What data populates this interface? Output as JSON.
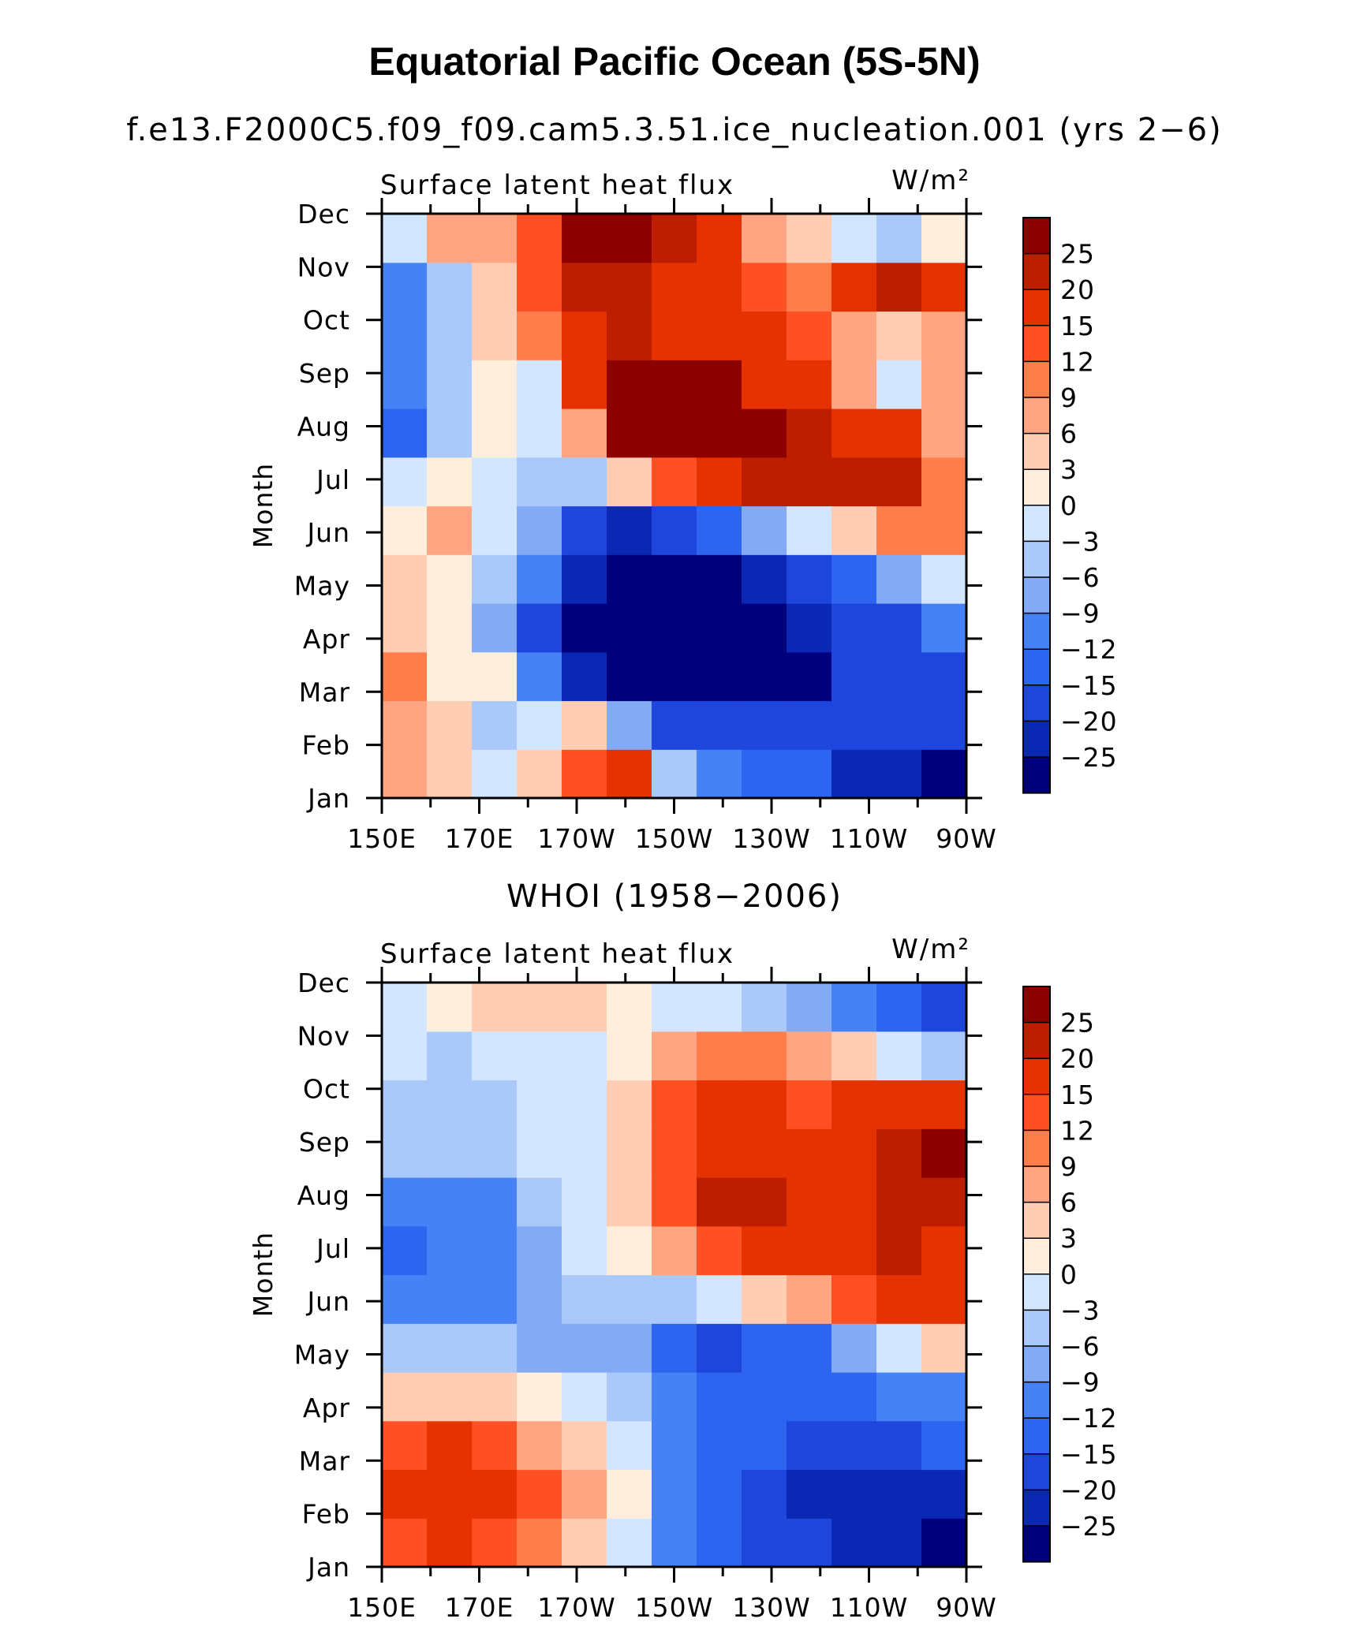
{
  "title": "Equatorial Pacific Ocean (5S-5N)",
  "subtitle": "f.e13.F2000C5.f09_f09.cam5.3.51.ice_nucleation.001 (yrs 2−6)",
  "chart_data": [
    {
      "type": "heatmap",
      "title": "",
      "panel_label": "Surface latent heat flux",
      "units_label": "W/m²",
      "xlabel": "",
      "ylabel": "Month",
      "x_ticks": [
        "150E",
        "170E",
        "170W",
        "150W",
        "130W",
        "110W",
        "90W"
      ],
      "y_ticks": [
        "Jan",
        "Feb",
        "Mar",
        "Apr",
        "May",
        "Jun",
        "Jul",
        "Aug",
        "Sep",
        "Oct",
        "Nov",
        "Dec"
      ],
      "longitudes": [
        "150E",
        "160E",
        "170E",
        "180",
        "170W",
        "160W",
        "150W",
        "140W",
        "130W",
        "120W",
        "110W",
        "100W",
        "90W"
      ],
      "z": [
        [
          6,
          4,
          -2,
          5,
          12,
          18,
          -4,
          -10,
          -15,
          -15,
          -22,
          -22,
          -28
        ],
        [
          8,
          5,
          -4,
          -2,
          3,
          -8,
          -18,
          -20,
          -20,
          -20,
          -20,
          -20,
          -20
        ],
        [
          10,
          2,
          0,
          -12,
          -22,
          -28,
          -28,
          -28,
          -28,
          -28,
          -20,
          -20,
          -20
        ],
        [
          5,
          0,
          -8,
          -18,
          -28,
          -28,
          -28,
          -28,
          -28,
          -25,
          -20,
          -18,
          -10
        ],
        [
          3,
          2,
          -6,
          -12,
          -24,
          -28,
          -28,
          -28,
          -25,
          -20,
          -15,
          -8,
          -3
        ],
        [
          2,
          6,
          -2,
          -8,
          -18,
          -22,
          -20,
          -15,
          -8,
          -2,
          4,
          9,
          10
        ],
        [
          -2,
          2,
          -1,
          -4,
          -5,
          5,
          12,
          18,
          20,
          22,
          22,
          20,
          10
        ],
        [
          -15,
          -6,
          0,
          -2,
          6,
          25,
          28,
          28,
          25,
          22,
          18,
          15,
          8
        ],
        [
          -12,
          -6,
          2,
          -2,
          18,
          28,
          28,
          25,
          18,
          15,
          6,
          -2,
          6
        ],
        [
          -10,
          -4,
          4,
          9,
          15,
          20,
          18,
          16,
          15,
          12,
          6,
          3,
          8
        ],
        [
          -12,
          -6,
          4,
          12,
          20,
          22,
          18,
          15,
          12,
          9,
          15,
          20,
          18
        ],
        [
          -3,
          6,
          8,
          12,
          25,
          28,
          20,
          15,
          6,
          3,
          -3,
          -6,
          0
        ]
      ],
      "color_levels": [
        "<-25",
        "-25",
        "-20",
        "-15",
        "-12",
        "-9",
        "-6",
        "-3",
        "0",
        "3",
        "6",
        "9",
        "12",
        "15",
        "20",
        "25",
        ">25"
      ],
      "colorbar_labels": [
        "25",
        "20",
        "15",
        "12",
        "9",
        "6",
        "3",
        "0",
        "−3",
        "−6",
        "−9",
        "−12",
        "−15",
        "−20",
        "−25"
      ]
    },
    {
      "type": "heatmap",
      "title": "WHOI (1958−2006)",
      "panel_label": "Surface latent heat flux",
      "units_label": "W/m²",
      "xlabel": "",
      "ylabel": "Month",
      "x_ticks": [
        "150E",
        "170E",
        "170W",
        "150W",
        "130W",
        "110W",
        "90W"
      ],
      "y_ticks": [
        "Jan",
        "Feb",
        "Mar",
        "Apr",
        "May",
        "Jun",
        "Jul",
        "Aug",
        "Sep",
        "Oct",
        "Nov",
        "Dec"
      ],
      "longitudes": [
        "150E",
        "160E",
        "170E",
        "180",
        "170W",
        "160W",
        "150W",
        "140W",
        "130W",
        "120W",
        "110W",
        "100W",
        "90W"
      ],
      "z": [
        [
          12,
          15,
          12,
          10,
          3,
          -2,
          -12,
          -15,
          -18,
          -20,
          -22,
          -25,
          -28
        ],
        [
          15,
          18,
          18,
          12,
          6,
          0,
          -10,
          -15,
          -18,
          -22,
          -22,
          -22,
          -22
        ],
        [
          12,
          15,
          12,
          6,
          3,
          -3,
          -12,
          -15,
          -15,
          -18,
          -18,
          -18,
          -15
        ],
        [
          4,
          4,
          3,
          0,
          -2,
          -6,
          -12,
          -15,
          -15,
          -15,
          -15,
          -12,
          -10
        ],
        [
          -6,
          -6,
          -6,
          -8,
          -9,
          -9,
          -15,
          -18,
          -15,
          -15,
          -9,
          -3,
          3
        ],
        [
          -12,
          -12,
          -10,
          -9,
          -6,
          -5,
          -6,
          -3,
          3,
          6,
          12,
          15,
          15
        ],
        [
          -15,
          -12,
          -12,
          -8,
          -3,
          0,
          6,
          12,
          15,
          18,
          18,
          20,
          18
        ],
        [
          -12,
          -12,
          -10,
          -6,
          -3,
          3,
          12,
          20,
          20,
          15,
          18,
          20,
          20
        ],
        [
          -6,
          -6,
          -6,
          -3,
          -3,
          3,
          12,
          18,
          18,
          15,
          18,
          20,
          25
        ],
        [
          -6,
          -6,
          -5,
          -3,
          -3,
          3,
          12,
          15,
          15,
          12,
          15,
          15,
          15
        ],
        [
          -3,
          -6,
          -3,
          -3,
          -3,
          0,
          6,
          9,
          9,
          6,
          3,
          -3,
          -6
        ],
        [
          -3,
          0,
          3,
          3,
          3,
          0,
          -3,
          -3,
          -6,
          -9,
          -12,
          -15,
          -20
        ]
      ],
      "color_levels": [
        "<-25",
        "-25",
        "-20",
        "-15",
        "-12",
        "-9",
        "-6",
        "-3",
        "0",
        "3",
        "6",
        "9",
        "12",
        "15",
        "20",
        "25",
        ">25"
      ],
      "colorbar_labels": [
        "25",
        "20",
        "15",
        "12",
        "9",
        "6",
        "3",
        "0",
        "−3",
        "−6",
        "−9",
        "−12",
        "−15",
        "−20",
        "−25"
      ]
    }
  ],
  "colors": {
    "palette": [
      "#00007d",
      "#0a28b4",
      "#1e46dc",
      "#2d64f0",
      "#4682f5",
      "#82aaf5",
      "#aac8fa",
      "#d2e6ff",
      "#ffeedc",
      "#ffcdb4",
      "#ffa582",
      "#ff7d4b",
      "#ff5023",
      "#e63200",
      "#be1e00",
      "#8c0000"
    ]
  }
}
